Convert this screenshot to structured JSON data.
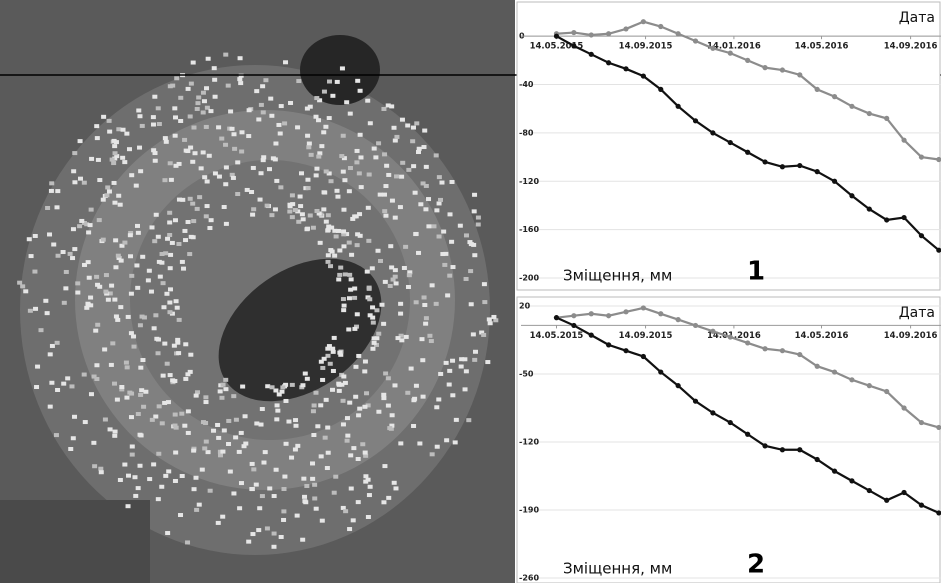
{
  "chart_data": [
    {
      "type": "line",
      "x_label": "Дата",
      "y_label": "Зміщення, мм",
      "annotation": "1",
      "x": [
        "2015-05-14",
        "2015-06-07",
        "2015-07-01",
        "2015-07-25",
        "2015-08-18",
        "2015-09-11",
        "2015-10-05",
        "2015-10-29",
        "2015-11-22",
        "2015-12-16",
        "2016-01-09",
        "2016-02-02",
        "2016-02-26",
        "2016-03-21",
        "2016-04-14",
        "2016-05-08",
        "2016-06-01",
        "2016-06-25",
        "2016-07-19",
        "2016-08-12",
        "2016-09-05",
        "2016-09-29",
        "2016-10-23"
      ],
      "series": [
        {
          "color": "#8c8c8c",
          "values": [
            2,
            3,
            1,
            2,
            6,
            12,
            8,
            2,
            -4,
            -10,
            -14,
            -20,
            -26,
            -28,
            -32,
            -44,
            -50,
            -58,
            -64,
            -68,
            -86,
            -100,
            -102
          ]
        },
        {
          "color": "#111111",
          "values": [
            0,
            -8,
            -15,
            -22,
            -27,
            -33,
            -44,
            -58,
            -70,
            -80,
            -88,
            -96,
            -104,
            -108,
            -107,
            -112,
            -120,
            -132,
            -143,
            -152,
            -150,
            -165,
            -177
          ]
        }
      ],
      "xlim": [
        "2015-03-26",
        "2016-10-26"
      ],
      "xticks": [
        {
          "value": "2015-05-14",
          "label": "14.05.2015"
        },
        {
          "value": "2015-09-14",
          "label": "14.09.2015"
        },
        {
          "value": "2016-01-14",
          "label": "14.01.2016"
        },
        {
          "value": "2016-05-14",
          "label": "14.05.2016"
        },
        {
          "value": "2016-09-14",
          "label": "14.09.2016"
        }
      ],
      "ylim": [
        -200,
        20
      ],
      "yticks": [
        0,
        -40,
        -80,
        -120,
        -160,
        -200
      ],
      "grid": true
    },
    {
      "type": "line",
      "x_label": "Дата",
      "y_label": "Зміщення, мм",
      "annotation": "2",
      "x": [
        "2015-05-14",
        "2015-06-07",
        "2015-07-01",
        "2015-07-25",
        "2015-08-18",
        "2015-09-11",
        "2015-10-05",
        "2015-10-29",
        "2015-11-22",
        "2015-12-16",
        "2016-01-09",
        "2016-02-02",
        "2016-02-26",
        "2016-03-21",
        "2016-04-14",
        "2016-05-08",
        "2016-06-01",
        "2016-06-25",
        "2016-07-19",
        "2016-08-12",
        "2016-09-05",
        "2016-09-29",
        "2016-10-23"
      ],
      "series": [
        {
          "color": "#8c8c8c",
          "values": [
            8,
            10,
            12,
            10,
            14,
            18,
            12,
            6,
            0,
            -6,
            -12,
            -18,
            -24,
            -26,
            -30,
            -42,
            -48,
            -56,
            -62,
            -68,
            -85,
            -100,
            -105
          ]
        },
        {
          "color": "#111111",
          "values": [
            8,
            0,
            -10,
            -20,
            -26,
            -32,
            -48,
            -62,
            -78,
            -90,
            -100,
            -112,
            -124,
            -128,
            -128,
            -138,
            -150,
            -160,
            -170,
            -180,
            -172,
            -185,
            -193
          ]
        }
      ],
      "xlim": [
        "2015-03-26",
        "2016-10-26"
      ],
      "xticks": [
        {
          "value": "2015-05-14",
          "label": "14.05.2015"
        },
        {
          "value": "2015-09-14",
          "label": "14.09.2015"
        },
        {
          "value": "2016-01-14",
          "label": "14.01.2016"
        },
        {
          "value": "2016-05-14",
          "label": "14.05.2016"
        },
        {
          "value": "2016-09-14",
          "label": "14.09.2016"
        }
      ],
      "ylim": [
        -260,
        20
      ],
      "yticks": [
        20,
        -50,
        -120,
        -190,
        -260
      ],
      "grid": true
    }
  ]
}
